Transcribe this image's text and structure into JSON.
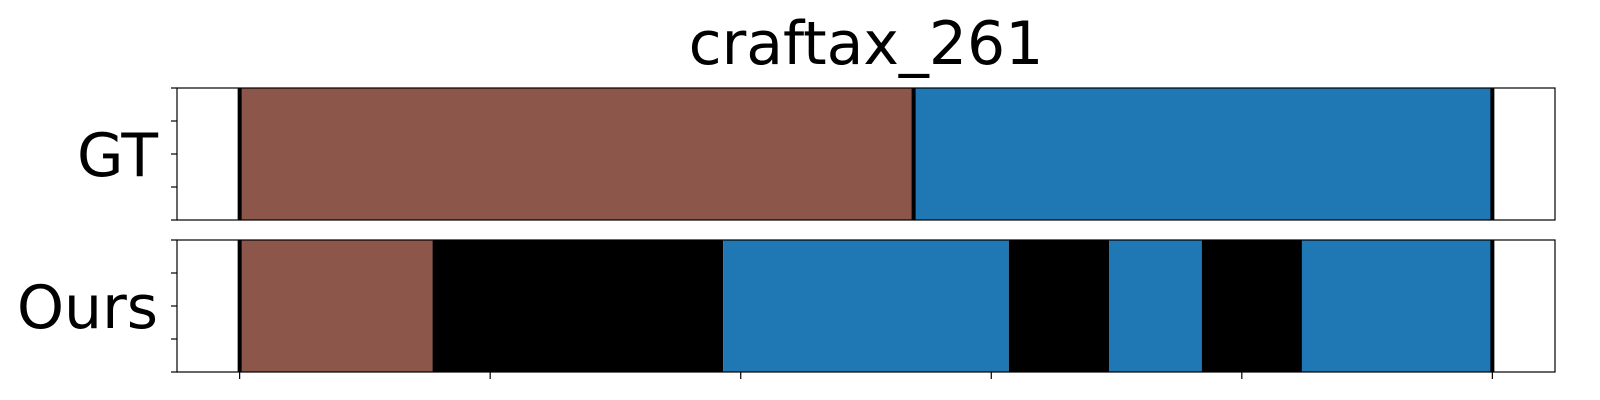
{
  "chart_data": {
    "type": "segmentation-timeline",
    "title": "craftax_261",
    "x_range": [
      -25,
      525
    ],
    "x_ticks": [
      0,
      100,
      200,
      300,
      400,
      500
    ],
    "x_tick_labels_shown": false,
    "y_tick_labels_shown": false,
    "rows": [
      {
        "label": "GT",
        "boundaries": [
          0,
          269,
          500
        ],
        "segments": [
          {
            "start": 0,
            "end": 269,
            "color": "#8c564b"
          },
          {
            "start": 269,
            "end": 500,
            "color": "#1f77b4"
          }
        ]
      },
      {
        "label": "Ours",
        "boundaries": [
          0,
          500
        ],
        "segments": [
          {
            "start": 0,
            "end": 77,
            "color": "#8c564b"
          },
          {
            "start": 77,
            "end": 193,
            "color": "#000000"
          },
          {
            "start": 193,
            "end": 307,
            "color": "#1f77b4"
          },
          {
            "start": 307,
            "end": 347,
            "color": "#000000"
          },
          {
            "start": 347,
            "end": 384,
            "color": "#1f77b4"
          },
          {
            "start": 384,
            "end": 424,
            "color": "#000000"
          },
          {
            "start": 424,
            "end": 500,
            "color": "#1f77b4"
          }
        ]
      }
    ]
  }
}
